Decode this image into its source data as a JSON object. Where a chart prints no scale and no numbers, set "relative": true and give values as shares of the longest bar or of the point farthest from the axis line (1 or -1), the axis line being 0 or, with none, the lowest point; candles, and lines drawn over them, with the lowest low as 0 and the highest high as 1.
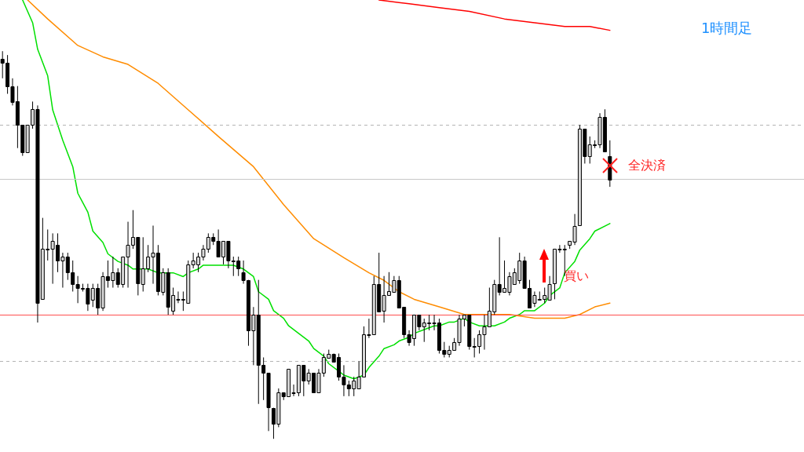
{
  "chart_data": [
    {
      "type": "candlestick",
      "relative": true,
      "grid": false,
      "legend": false,
      "tick_labels": false,
      "categories": [
        null,
        null,
        null,
        null,
        null,
        null,
        null,
        null,
        null,
        null,
        null,
        null,
        null,
        null,
        null,
        null,
        null,
        null,
        null,
        null,
        null,
        null,
        null,
        null,
        null,
        null,
        null,
        null,
        null,
        null,
        null,
        null,
        null,
        null,
        null,
        null,
        null,
        null,
        null,
        null,
        null,
        null,
        null,
        null,
        null,
        null,
        null,
        null,
        null,
        null,
        null,
        null,
        null,
        null,
        null,
        null,
        null,
        null,
        null,
        null,
        null,
        null,
        null,
        null,
        null,
        null,
        null,
        null,
        null,
        null,
        null,
        null,
        null,
        null,
        null,
        null,
        null,
        null,
        null,
        null,
        null,
        null,
        null,
        null,
        null,
        null,
        null,
        null,
        null,
        null,
        null,
        null,
        null,
        null,
        null,
        null,
        null,
        null,
        null,
        null,
        null,
        null,
        null,
        null,
        null,
        null,
        null,
        null,
        null,
        null,
        null,
        null,
        null,
        null,
        null,
        null,
        null,
        null,
        null,
        null,
        null,
        null
      ],
      "ohlc": [
        [
          0.98,
          1.0,
          0.93,
          0.97
        ],
        [
          0.97,
          0.99,
          0.89,
          0.91
        ],
        [
          0.91,
          0.93,
          0.86,
          0.87
        ],
        [
          0.87,
          0.91,
          0.75,
          0.81
        ],
        [
          0.81,
          0.81,
          0.73,
          0.74
        ],
        [
          0.74,
          0.81,
          0.74,
          0.81
        ],
        [
          0.81,
          0.87,
          0.8,
          0.85
        ],
        [
          0.85,
          0.86,
          0.3,
          0.35
        ],
        [
          0.36,
          0.57,
          0.36,
          0.49
        ],
        [
          0.49,
          0.54,
          0.46,
          0.49
        ],
        [
          0.49,
          0.53,
          0.4,
          0.51
        ],
        [
          0.5,
          0.53,
          0.43,
          0.46
        ],
        [
          0.46,
          0.48,
          0.39,
          0.47
        ],
        [
          0.47,
          0.48,
          0.41,
          0.43
        ],
        [
          0.43,
          0.46,
          0.38,
          0.4
        ],
        [
          0.4,
          0.42,
          0.35,
          0.39
        ],
        [
          0.39,
          0.4,
          0.38,
          0.39
        ],
        [
          0.39,
          0.4,
          0.33,
          0.35
        ],
        [
          0.36,
          0.4,
          0.34,
          0.39
        ],
        [
          0.39,
          0.4,
          0.32,
          0.34
        ],
        [
          0.34,
          0.43,
          0.33,
          0.42
        ],
        [
          0.42,
          0.46,
          0.39,
          0.41
        ],
        [
          0.41,
          0.47,
          0.39,
          0.43
        ],
        [
          0.43,
          0.44,
          0.39,
          0.4
        ],
        [
          0.4,
          0.47,
          0.39,
          0.47
        ],
        [
          0.47,
          0.56,
          0.39,
          0.5
        ],
        [
          0.5,
          0.59,
          0.49,
          0.52
        ],
        [
          0.52,
          0.52,
          0.37,
          0.4
        ],
        [
          0.4,
          0.52,
          0.38,
          0.44
        ],
        [
          0.44,
          0.5,
          0.43,
          0.47
        ],
        [
          0.47,
          0.55,
          0.4,
          0.48
        ],
        [
          0.48,
          0.5,
          0.37,
          0.38
        ],
        [
          0.38,
          0.44,
          0.37,
          0.43
        ],
        [
          0.43,
          0.44,
          0.32,
          0.34
        ],
        [
          0.33,
          0.39,
          0.32,
          0.37
        ],
        [
          0.36,
          0.38,
          0.35,
          0.36
        ],
        [
          0.36,
          0.38,
          0.33,
          0.36
        ],
        [
          0.35,
          0.46,
          0.35,
          0.45
        ],
        [
          0.45,
          0.48,
          0.44,
          0.46
        ],
        [
          0.45,
          0.48,
          0.43,
          0.47
        ],
        [
          0.47,
          0.5,
          0.46,
          0.49
        ],
        [
          0.49,
          0.53,
          0.48,
          0.52
        ],
        [
          0.52,
          0.53,
          0.5,
          0.51
        ],
        [
          0.51,
          0.54,
          0.47,
          0.47
        ],
        [
          0.47,
          0.51,
          0.45,
          0.51
        ],
        [
          0.51,
          0.51,
          0.44,
          0.46
        ],
        [
          0.46,
          0.47,
          0.42,
          0.46
        ],
        [
          0.46,
          0.47,
          0.42,
          0.44
        ],
        [
          0.43,
          0.46,
          0.4,
          0.41
        ],
        [
          0.41,
          0.41,
          0.24,
          0.28
        ],
        [
          0.28,
          0.34,
          0.19,
          0.32
        ],
        [
          0.32,
          0.41,
          0.09,
          0.19
        ],
        [
          0.19,
          0.21,
          0.1,
          0.17
        ],
        [
          0.17,
          0.17,
          0.02,
          0.08
        ],
        [
          0.08,
          0.08,
          0.0,
          0.04
        ],
        [
          0.04,
          0.13,
          0.03,
          0.12
        ],
        [
          0.12,
          0.12,
          0.1,
          0.11
        ],
        [
          0.11,
          0.18,
          0.11,
          0.18
        ],
        [
          0.12,
          0.14,
          0.11,
          0.12
        ],
        [
          0.12,
          0.19,
          0.11,
          0.19
        ],
        [
          0.19,
          0.19,
          0.11,
          0.15
        ],
        [
          0.15,
          0.18,
          0.14,
          0.17
        ],
        [
          0.17,
          0.17,
          0.12,
          0.12
        ],
        [
          0.12,
          0.18,
          0.12,
          0.17
        ],
        [
          0.17,
          0.22,
          0.16,
          0.21
        ],
        [
          0.21,
          0.23,
          0.21,
          0.22
        ],
        [
          0.22,
          0.22,
          0.2,
          0.2
        ],
        [
          0.21,
          0.22,
          0.15,
          0.16
        ],
        [
          0.16,
          0.19,
          0.11,
          0.14
        ],
        [
          0.14,
          0.15,
          0.11,
          0.13
        ],
        [
          0.13,
          0.16,
          0.11,
          0.15
        ],
        [
          0.13,
          0.2,
          0.13,
          0.16
        ],
        [
          0.16,
          0.29,
          0.16,
          0.27
        ],
        [
          0.27,
          0.31,
          0.26,
          0.27
        ],
        [
          0.27,
          0.42,
          0.27,
          0.4
        ],
        [
          0.4,
          0.48,
          0.33,
          0.33
        ],
        [
          0.33,
          0.42,
          0.3,
          0.37
        ],
        [
          0.37,
          0.43,
          0.37,
          0.38
        ],
        [
          0.38,
          0.42,
          0.38,
          0.41
        ],
        [
          0.41,
          0.42,
          0.34,
          0.34
        ],
        [
          0.34,
          0.34,
          0.26,
          0.27
        ],
        [
          0.27,
          0.28,
          0.24,
          0.25
        ],
        [
          0.26,
          0.32,
          0.24,
          0.32
        ],
        [
          0.32,
          0.32,
          0.28,
          0.29
        ],
        [
          0.29,
          0.31,
          0.25,
          0.3
        ],
        [
          0.3,
          0.32,
          0.28,
          0.3
        ],
        [
          0.3,
          0.32,
          0.28,
          0.3
        ],
        [
          0.3,
          0.31,
          0.22,
          0.23
        ],
        [
          0.23,
          0.25,
          0.21,
          0.22
        ],
        [
          0.22,
          0.24,
          0.21,
          0.23
        ],
        [
          0.23,
          0.26,
          0.23,
          0.25
        ],
        [
          0.25,
          0.32,
          0.24,
          0.31
        ],
        [
          0.31,
          0.32,
          0.29,
          0.32
        ],
        [
          0.32,
          0.32,
          0.23,
          0.24
        ],
        [
          0.24,
          0.26,
          0.21,
          0.24
        ],
        [
          0.24,
          0.28,
          0.22,
          0.27
        ],
        [
          0.27,
          0.32,
          0.23,
          0.29
        ],
        [
          0.29,
          0.39,
          0.29,
          0.33
        ],
        [
          0.33,
          0.41,
          0.32,
          0.4
        ],
        [
          0.4,
          0.52,
          0.37,
          0.38
        ],
        [
          0.38,
          0.46,
          0.38,
          0.39
        ],
        [
          0.38,
          0.43,
          0.37,
          0.42
        ],
        [
          0.4,
          0.44,
          0.4,
          0.43
        ],
        [
          0.41,
          0.48,
          0.4,
          0.46
        ],
        [
          0.46,
          0.47,
          0.39,
          0.39
        ],
        [
          0.39,
          0.41,
          0.34,
          0.34
        ],
        [
          0.35,
          0.38,
          0.34,
          0.37
        ],
        [
          0.36,
          0.38,
          0.36,
          0.36
        ],
        [
          0.36,
          0.39,
          0.35,
          0.37
        ],
        [
          0.36,
          0.42,
          0.36,
          0.4
        ],
        [
          0.4,
          0.49,
          0.36,
          0.49
        ],
        [
          0.49,
          0.5,
          0.48,
          0.49
        ],
        [
          0.49,
          0.5,
          0.42,
          0.49
        ],
        [
          0.5,
          0.51,
          0.49,
          0.51
        ],
        [
          0.51,
          0.58,
          0.5,
          0.55
        ],
        [
          0.55,
          0.81,
          0.55,
          0.8
        ],
        [
          0.8,
          0.8,
          0.71,
          0.73
        ],
        [
          0.73,
          0.78,
          0.71,
          0.76
        ],
        [
          0.76,
          0.77,
          0.75,
          0.76
        ],
        [
          0.76,
          0.84,
          0.75,
          0.83
        ],
        [
          0.83,
          0.85,
          0.74,
          0.74
        ],
        [
          0.73,
          0.77,
          0.65,
          0.67
        ]
      ],
      "ref_lines": [
        {
          "axis": "y",
          "value": 0.81,
          "color": "#b4b4b4",
          "line_style": "dashed"
        },
        {
          "axis": "y",
          "value": 0.67,
          "color": "#c8c8c8",
          "line_style": "solid"
        },
        {
          "axis": "y",
          "value": 0.32,
          "color": "#ff5050",
          "line_style": "solid"
        },
        {
          "axis": "y",
          "value": 0.2,
          "color": "#b4b4b4",
          "line_style": "dashed"
        }
      ],
      "annotations": [
        "1時間足",
        "全決済",
        "買い"
      ]
    },
    {
      "type": "line",
      "relative": true,
      "grid": false,
      "legend": false,
      "tick_labels": false,
      "marker": "none",
      "categories": [
        null,
        null,
        null,
        null,
        null,
        null,
        null,
        null,
        null,
        null,
        null,
        null,
        null,
        null,
        null,
        null,
        null,
        null,
        null,
        null,
        null,
        null,
        null,
        null,
        null,
        null,
        null,
        null,
        null,
        null,
        null,
        null,
        null,
        null,
        null,
        null,
        null,
        null,
        null,
        null,
        null,
        null,
        null,
        null,
        null,
        null,
        null,
        null,
        null,
        null,
        null,
        null,
        null,
        null,
        null,
        null,
        null,
        null,
        null,
        null,
        null,
        null,
        null,
        null,
        null,
        null,
        null,
        null,
        null,
        null,
        null,
        null,
        null,
        null,
        null,
        null,
        null,
        null,
        null,
        null,
        null,
        null,
        null,
        null,
        null,
        null,
        null,
        null,
        null,
        null,
        null,
        null,
        null,
        null,
        null,
        null,
        null,
        null,
        null,
        null,
        null,
        null,
        null,
        null,
        null,
        null,
        null,
        null,
        null,
        null,
        null,
        null,
        null,
        null,
        null,
        null,
        null,
        null,
        null,
        null,
        null,
        null
      ],
      "series": [
        {
          "color": "#ff0000",
          "values": [
            null,
            null,
            null,
            null,
            null,
            null,
            null,
            null,
            null,
            null,
            null,
            null,
            null,
            null,
            null,
            null,
            null,
            null,
            null,
            null,
            null,
            null,
            null,
            null,
            null,
            null,
            null,
            null,
            null,
            null,
            null,
            null,
            null,
            null,
            null,
            null,
            null,
            null,
            null,
            null,
            null,
            null,
            null,
            null,
            null,
            null,
            null,
            null,
            null,
            null,
            null,
            null,
            null,
            null,
            null,
            null,
            null,
            null,
            null,
            null,
            null,
            null,
            null,
            null,
            null,
            null,
            null,
            null,
            null,
            null,
            null,
            null,
            null,
            null,
            null,
            1.0,
            null,
            null,
            null,
            null,
            null,
            0.99,
            null,
            null,
            null,
            null,
            null,
            0.98,
            null,
            null,
            null,
            null,
            null,
            0.97,
            null,
            null,
            null,
            null,
            null,
            null,
            0.95,
            null,
            null,
            null,
            null,
            null,
            0.94,
            null,
            null,
            null,
            null,
            null,
            0.93,
            null,
            null,
            null,
            null,
            0.93,
            null,
            null,
            null,
            0.92
          ]
        },
        {
          "color": "#ff8c00",
          "values": [
            null,
            null,
            null,
            null,
            null,
            1.0,
            null,
            null,
            null,
            0.95,
            null,
            null,
            null,
            null,
            null,
            0.88,
            null,
            null,
            null,
            null,
            0.85,
            null,
            null,
            null,
            null,
            0.83,
            null,
            null,
            null,
            null,
            null,
            0.78,
            null,
            null,
            null,
            null,
            null,
            0.71,
            null,
            null,
            null,
            null,
            null,
            0.64,
            null,
            null,
            null,
            null,
            null,
            null,
            0.56,
            null,
            null,
            null,
            null,
            null,
            0.46,
            null,
            null,
            null,
            null,
            null,
            0.37,
            null,
            null,
            null,
            null,
            null,
            0.32,
            null,
            null,
            null,
            null,
            0.28,
            null,
            null,
            0.26,
            null,
            null,
            0.23,
            null,
            null,
            0.21,
            null,
            null,
            null,
            null,
            0.19,
            null,
            null,
            null,
            null,
            0.17,
            null,
            null,
            null,
            null,
            0.17,
            null,
            null,
            null,
            0.17,
            null,
            null,
            null,
            null,
            0.16,
            null,
            null,
            0.16,
            null,
            null,
            0.16,
            null,
            null,
            0.17,
            null,
            null,
            0.19,
            null,
            null,
            0.2
          ]
        },
        {
          "color": "#00e000",
          "values": [
            null,
            null,
            null,
            null,
            1.0,
            null,
            0.94,
            0.87,
            null,
            0.8,
            0.71,
            null,
            0.63,
            null,
            0.56,
            0.49,
            null,
            0.44,
            0.39,
            null,
            0.36,
            0.33,
            null,
            0.31,
            null,
            0.3,
            0.29,
            null,
            0.29,
            0.29,
            null,
            0.28,
            0.28,
            null,
            0.28,
            null,
            0.27,
            0.28,
            null,
            0.29,
            0.3,
            null,
            0.3,
            null,
            0.3,
            null,
            0.3,
            null,
            0.29,
            null,
            0.27,
            0.23,
            null,
            0.21,
            0.18,
            null,
            0.16,
            0.14,
            null,
            0.12,
            null,
            0.1,
            0.08,
            null,
            0.06,
            0.04,
            null,
            0.02,
            0.01,
            null,
            0.0,
            null,
            0.01,
            0.03,
            null,
            0.06,
            0.08,
            null,
            0.09,
            0.1,
            null,
            0.11,
            0.12,
            null,
            0.13,
            null,
            0.14,
            0.14,
            null,
            0.15,
            0.15,
            null,
            0.16,
            0.15,
            null,
            0.14,
            null,
            0.14,
            0.14,
            null,
            0.15,
            0.16,
            null,
            0.17,
            0.18,
            null,
            0.18,
            null,
            0.2,
            0.22,
            null,
            0.24,
            0.28,
            null,
            0.31,
            0.34,
            null,
            0.37,
            0.39,
            null,
            null,
            0.41
          ]
        }
      ]
    }
  ]
}
